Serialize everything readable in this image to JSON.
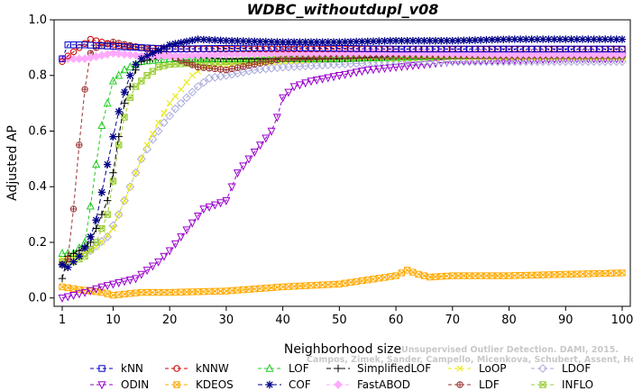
{
  "chart_data": {
    "type": "line",
    "title": "WDBC_withoutdupl_v08",
    "xlabel": "Neighborhood size",
    "ylabel": "Adjusted AP",
    "xlim": [
      1,
      100
    ],
    "ylim": [
      -0.03,
      1.0
    ],
    "x_ticks": [
      1,
      10,
      20,
      30,
      40,
      50,
      60,
      70,
      80,
      90,
      100
    ],
    "y_ticks": [
      0.0,
      0.2,
      0.4,
      0.6,
      0.8,
      1.0
    ],
    "y_tick_labels": [
      "0.0",
      "0.2",
      "0.4",
      "0.6",
      "0.8",
      "1.0"
    ],
    "grid": false,
    "legend_position": "bottom",
    "watermark_lines": [
      "Unsupervised Outlier Detection. DAMI, 2015.",
      "Campos, Zimek, Sander, Campello, Micenkova, Schubert, Assent, Houle"
    ],
    "series": [
      {
        "name": "kNN",
        "color": "#0000cc",
        "marker": "square",
        "dash": "4,3",
        "points": [
          [
            1,
            0.86
          ],
          [
            2,
            0.91
          ],
          [
            5,
            0.91
          ],
          [
            10,
            0.905
          ],
          [
            20,
            0.895
          ],
          [
            40,
            0.9
          ],
          [
            60,
            0.895
          ],
          [
            80,
            0.895
          ],
          [
            100,
            0.895
          ]
        ]
      },
      {
        "name": "kNNW",
        "color": "#cc0000",
        "marker": "circle",
        "dash": "4,3",
        "points": [
          [
            1,
            0.85
          ],
          [
            2,
            0.87
          ],
          [
            4,
            0.9
          ],
          [
            6,
            0.93
          ],
          [
            10,
            0.91
          ],
          [
            15,
            0.9
          ],
          [
            20,
            0.895
          ],
          [
            40,
            0.895
          ],
          [
            60,
            0.895
          ],
          [
            80,
            0.895
          ],
          [
            100,
            0.895
          ]
        ]
      },
      {
        "name": "LOF",
        "color": "#22cc22",
        "marker": "triangle-up",
        "dash": "4,3",
        "points": [
          [
            1,
            0.16
          ],
          [
            3,
            0.16
          ],
          [
            5,
            0.2
          ],
          [
            6,
            0.33
          ],
          [
            7,
            0.48
          ],
          [
            8,
            0.62
          ],
          [
            9,
            0.7
          ],
          [
            10,
            0.78
          ],
          [
            12,
            0.82
          ],
          [
            15,
            0.85
          ],
          [
            20,
            0.86
          ],
          [
            30,
            0.86
          ],
          [
            40,
            0.86
          ],
          [
            50,
            0.86
          ],
          [
            60,
            0.865
          ],
          [
            70,
            0.87
          ],
          [
            80,
            0.875
          ],
          [
            90,
            0.875
          ],
          [
            100,
            0.875
          ]
        ]
      },
      {
        "name": "SimplifiedLOF",
        "color": "#000000",
        "marker": "plus",
        "dash": "5,3",
        "points": [
          [
            1,
            0.07
          ],
          [
            2,
            0.15
          ],
          [
            4,
            0.17
          ],
          [
            6,
            0.2
          ],
          [
            8,
            0.3
          ],
          [
            9,
            0.35
          ],
          [
            10,
            0.45
          ],
          [
            11,
            0.58
          ],
          [
            12,
            0.7
          ],
          [
            13,
            0.76
          ],
          [
            14,
            0.82
          ],
          [
            15,
            0.85
          ],
          [
            17,
            0.86
          ],
          [
            20,
            0.87
          ],
          [
            30,
            0.86
          ],
          [
            40,
            0.86
          ],
          [
            50,
            0.86
          ],
          [
            60,
            0.87
          ],
          [
            70,
            0.88
          ],
          [
            80,
            0.88
          ],
          [
            100,
            0.88
          ]
        ]
      },
      {
        "name": "LoOP",
        "color": "#e8e800",
        "marker": "x",
        "dash": "4,3",
        "points": [
          [
            1,
            0.14
          ],
          [
            3,
            0.15
          ],
          [
            6,
            0.17
          ],
          [
            8,
            0.2
          ],
          [
            10,
            0.25
          ],
          [
            12,
            0.35
          ],
          [
            14,
            0.45
          ],
          [
            16,
            0.55
          ],
          [
            18,
            0.63
          ],
          [
            20,
            0.7
          ],
          [
            22,
            0.75
          ],
          [
            24,
            0.8
          ],
          [
            26,
            0.83
          ],
          [
            30,
            0.84
          ],
          [
            40,
            0.85
          ],
          [
            50,
            0.86
          ],
          [
            60,
            0.86
          ],
          [
            70,
            0.865
          ],
          [
            80,
            0.865
          ],
          [
            100,
            0.865
          ]
        ]
      },
      {
        "name": "LDOF",
        "color": "#aaaadd",
        "marker": "diamond",
        "dash": "4,3",
        "points": [
          [
            1,
            0.12
          ],
          [
            3,
            0.14
          ],
          [
            6,
            0.17
          ],
          [
            9,
            0.22
          ],
          [
            11,
            0.3
          ],
          [
            13,
            0.4
          ],
          [
            15,
            0.5
          ],
          [
            17,
            0.57
          ],
          [
            19,
            0.63
          ],
          [
            21,
            0.68
          ],
          [
            23,
            0.72
          ],
          [
            25,
            0.76
          ],
          [
            27,
            0.79
          ],
          [
            30,
            0.8
          ],
          [
            35,
            0.82
          ],
          [
            40,
            0.83
          ],
          [
            50,
            0.84
          ],
          [
            60,
            0.85
          ],
          [
            70,
            0.85
          ],
          [
            80,
            0.85
          ],
          [
            100,
            0.85
          ]
        ]
      },
      {
        "name": "ODIN",
        "color": "#9900cc",
        "marker": "triangle-down",
        "dash": "4,3",
        "points": [
          [
            1,
            0.0
          ],
          [
            3,
            0.01
          ],
          [
            5,
            0.02
          ],
          [
            8,
            0.04
          ],
          [
            10,
            0.05
          ],
          [
            14,
            0.07
          ],
          [
            16,
            0.1
          ],
          [
            18,
            0.13
          ],
          [
            20,
            0.17
          ],
          [
            22,
            0.22
          ],
          [
            24,
            0.27
          ],
          [
            26,
            0.32
          ],
          [
            30,
            0.35
          ],
          [
            32,
            0.45
          ],
          [
            34,
            0.5
          ],
          [
            36,
            0.55
          ],
          [
            38,
            0.6
          ],
          [
            39,
            0.65
          ],
          [
            40,
            0.72
          ],
          [
            42,
            0.76
          ],
          [
            45,
            0.78
          ],
          [
            50,
            0.8
          ],
          [
            55,
            0.82
          ],
          [
            60,
            0.83
          ],
          [
            65,
            0.84
          ],
          [
            70,
            0.85
          ],
          [
            80,
            0.855
          ],
          [
            90,
            0.86
          ],
          [
            100,
            0.86
          ]
        ]
      },
      {
        "name": "KDEOS",
        "color": "#ffaa00",
        "marker": "square-x",
        "dash": "4,3",
        "points": [
          [
            1,
            0.04
          ],
          [
            4,
            0.03
          ],
          [
            8,
            0.02
          ],
          [
            10,
            0.01
          ],
          [
            15,
            0.02
          ],
          [
            20,
            0.02
          ],
          [
            30,
            0.025
          ],
          [
            40,
            0.04
          ],
          [
            50,
            0.05
          ],
          [
            55,
            0.065
          ],
          [
            60,
            0.08
          ],
          [
            62,
            0.1
          ],
          [
            64,
            0.085
          ],
          [
            66,
            0.075
          ],
          [
            70,
            0.08
          ],
          [
            80,
            0.08
          ],
          [
            90,
            0.085
          ],
          [
            100,
            0.09
          ]
        ]
      },
      {
        "name": "COF",
        "color": "#000088",
        "marker": "asterisk",
        "dash": "5,3",
        "points": [
          [
            1,
            0.12
          ],
          [
            2,
            0.11
          ],
          [
            3,
            0.13
          ],
          [
            4,
            0.15
          ],
          [
            5,
            0.18
          ],
          [
            6,
            0.22
          ],
          [
            7,
            0.28
          ],
          [
            8,
            0.38
          ],
          [
            9,
            0.48
          ],
          [
            10,
            0.58
          ],
          [
            11,
            0.67
          ],
          [
            12,
            0.74
          ],
          [
            13,
            0.8
          ],
          [
            14,
            0.84
          ],
          [
            15,
            0.86
          ],
          [
            17,
            0.88
          ],
          [
            20,
            0.91
          ],
          [
            25,
            0.93
          ],
          [
            30,
            0.925
          ],
          [
            40,
            0.92
          ],
          [
            50,
            0.92
          ],
          [
            60,
            0.925
          ],
          [
            70,
            0.925
          ],
          [
            80,
            0.93
          ],
          [
            90,
            0.93
          ],
          [
            100,
            0.93
          ]
        ]
      },
      {
        "name": "FastABOD",
        "color": "#ffaaff",
        "marker": "diamond-filled",
        "dash": "4,3",
        "points": [
          [
            1,
            0.86
          ],
          [
            3,
            0.86
          ],
          [
            5,
            0.86
          ],
          [
            10,
            0.88
          ],
          [
            15,
            0.87
          ],
          [
            20,
            0.87
          ],
          [
            30,
            0.875
          ],
          [
            40,
            0.88
          ],
          [
            60,
            0.88
          ],
          [
            80,
            0.875
          ],
          [
            100,
            0.875
          ]
        ]
      },
      {
        "name": "LDF",
        "color": "#993333",
        "marker": "circle-plus",
        "dash": "4,3",
        "points": [
          [
            1,
            0.12
          ],
          [
            2,
            0.14
          ],
          [
            3,
            0.32
          ],
          [
            4,
            0.55
          ],
          [
            5,
            0.75
          ],
          [
            6,
            0.88
          ],
          [
            7,
            0.9
          ],
          [
            10,
            0.92
          ],
          [
            15,
            0.9
          ],
          [
            20,
            0.87
          ],
          [
            25,
            0.83
          ],
          [
            30,
            0.82
          ],
          [
            35,
            0.84
          ],
          [
            40,
            0.86
          ],
          [
            50,
            0.87
          ],
          [
            60,
            0.87
          ],
          [
            80,
            0.87
          ],
          [
            100,
            0.87
          ]
        ]
      },
      {
        "name": "INFLO",
        "color": "#99cc33",
        "marker": "star-box",
        "dash": "4,3",
        "points": [
          [
            1,
            0.13
          ],
          [
            3,
            0.13
          ],
          [
            5,
            0.15
          ],
          [
            7,
            0.2
          ],
          [
            9,
            0.3
          ],
          [
            10,
            0.42
          ],
          [
            11,
            0.55
          ],
          [
            12,
            0.65
          ],
          [
            13,
            0.72
          ],
          [
            14,
            0.76
          ],
          [
            16,
            0.8
          ],
          [
            18,
            0.83
          ],
          [
            20,
            0.84
          ],
          [
            30,
            0.85
          ],
          [
            40,
            0.86
          ],
          [
            50,
            0.86
          ],
          [
            60,
            0.87
          ],
          [
            80,
            0.87
          ],
          [
            100,
            0.87
          ]
        ]
      }
    ]
  }
}
